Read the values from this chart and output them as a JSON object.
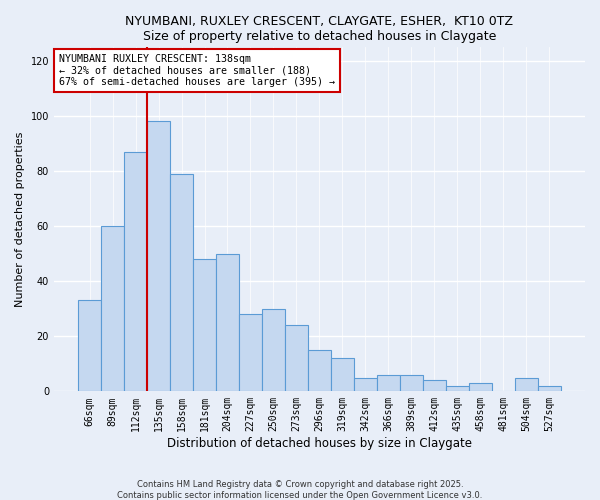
{
  "title1": "NYUMBANI, RUXLEY CRESCENT, CLAYGATE, ESHER,  KT10 0TZ",
  "title2": "Size of property relative to detached houses in Claygate",
  "xlabel": "Distribution of detached houses by size in Claygate",
  "ylabel": "Number of detached properties",
  "categories": [
    "66sqm",
    "89sqm",
    "112sqm",
    "135sqm",
    "158sqm",
    "181sqm",
    "204sqm",
    "227sqm",
    "250sqm",
    "273sqm",
    "296sqm",
    "319sqm",
    "342sqm",
    "366sqm",
    "389sqm",
    "412sqm",
    "435sqm",
    "458sqm",
    "481sqm",
    "504sqm",
    "527sqm"
  ],
  "values": [
    33,
    60,
    87,
    98,
    79,
    48,
    50,
    28,
    30,
    24,
    15,
    12,
    5,
    6,
    6,
    4,
    2,
    3,
    0,
    5,
    2
  ],
  "bar_color": "#c5d8f0",
  "bar_edge_color": "#5b9bd5",
  "vline_x": 2.5,
  "vline_color": "#cc0000",
  "annotation_title": "NYUMBANI RUXLEY CRESCENT: 138sqm",
  "annotation_line1": "← 32% of detached houses are smaller (188)",
  "annotation_line2": "67% of semi-detached houses are larger (395) →",
  "annotation_box_color": "#ffffff",
  "annotation_box_edge": "#cc0000",
  "ylim": [
    0,
    125
  ],
  "yticks": [
    0,
    20,
    40,
    60,
    80,
    100,
    120
  ],
  "footer1": "Contains HM Land Registry data © Crown copyright and database right 2025.",
  "footer2": "Contains public sector information licensed under the Open Government Licence v3.0.",
  "background_color": "#e8eef8"
}
